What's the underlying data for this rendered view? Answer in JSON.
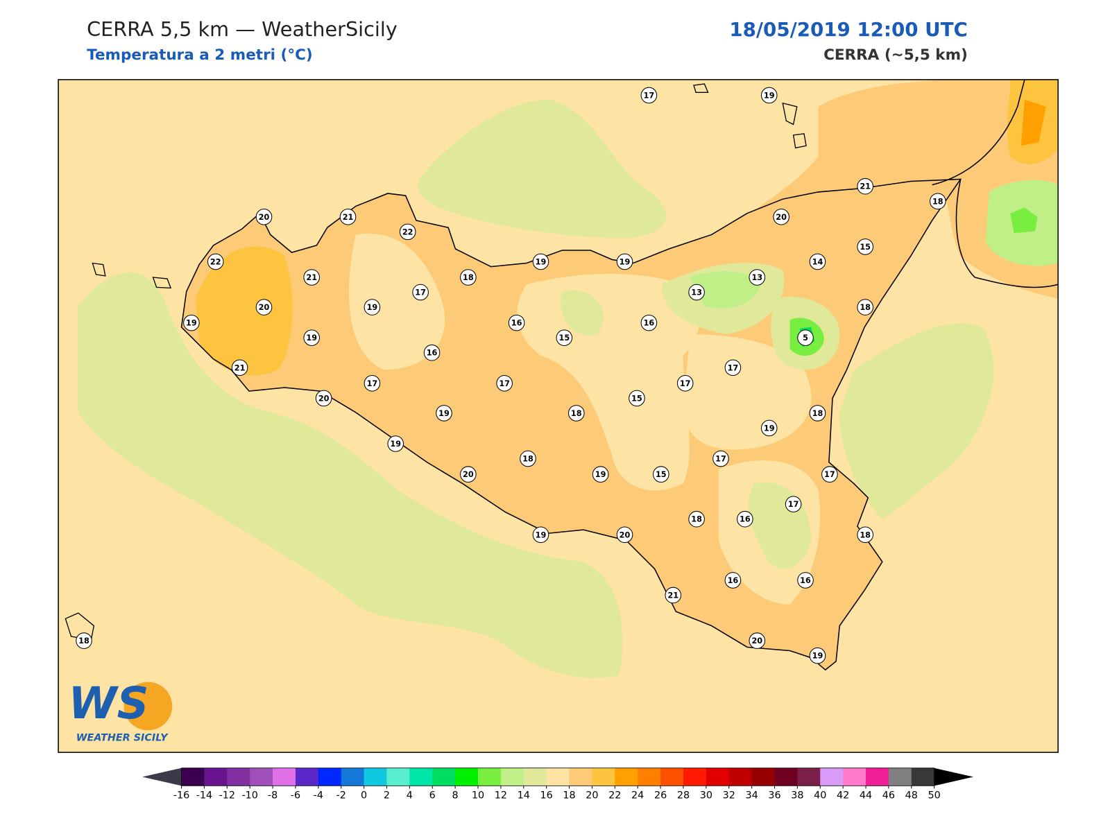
{
  "header": {
    "title": "CERRA 5,5 km — WeatherSicily",
    "subtitle": "Temperatura a 2 metri (°C)",
    "date": "18/05/2019 12:00 UTC",
    "source": "CERRA (~5,5 km)"
  },
  "map": {
    "stations": [
      17,
      19,
      20,
      21,
      22,
      21,
      18,
      20,
      15,
      22,
      19,
      19,
      14,
      21,
      18,
      13,
      17,
      13,
      20,
      19,
      18,
      19,
      16,
      16,
      15,
      19,
      5,
      16,
      21,
      17,
      17,
      17,
      17,
      20,
      15,
      19,
      18,
      18,
      19,
      19,
      18,
      17,
      20,
      19,
      15,
      17,
      17,
      18,
      16,
      19,
      20,
      18,
      16,
      16,
      21,
      20,
      19,
      18
    ]
  },
  "colorbar": {
    "ticks": [
      -16,
      -14,
      -12,
      -10,
      -8,
      -6,
      -4,
      -2,
      0,
      2,
      4,
      6,
      8,
      10,
      12,
      14,
      16,
      18,
      20,
      22,
      24,
      26,
      28,
      30,
      32,
      34,
      36,
      38,
      40,
      42,
      44,
      46,
      48,
      50
    ],
    "colors": [
      "#3c0050",
      "#6a1590",
      "#8030a0",
      "#a050b8",
      "#e070e8",
      "#5a28c8",
      "#0028ff",
      "#1478d8",
      "#10c8e0",
      "#5aeed0",
      "#00e6a8",
      "#00dd60",
      "#00f000",
      "#78ee40",
      "#c0ef88",
      "#e0e99a",
      "#fde3a4",
      "#fdca78",
      "#fdc440",
      "#ffa000",
      "#ff8000",
      "#ff5000",
      "#ff1a00",
      "#e00000",
      "#c00000",
      "#960000",
      "#700020",
      "#7a2048",
      "#d89cf8",
      "#ff7ac8",
      "#f01e96",
      "#808080",
      "#383838"
    ],
    "under_color": "#3a3a48",
    "over_color": "#000000"
  },
  "logo": {
    "mark": "WS",
    "name": "WEATHER SICILY"
  }
}
